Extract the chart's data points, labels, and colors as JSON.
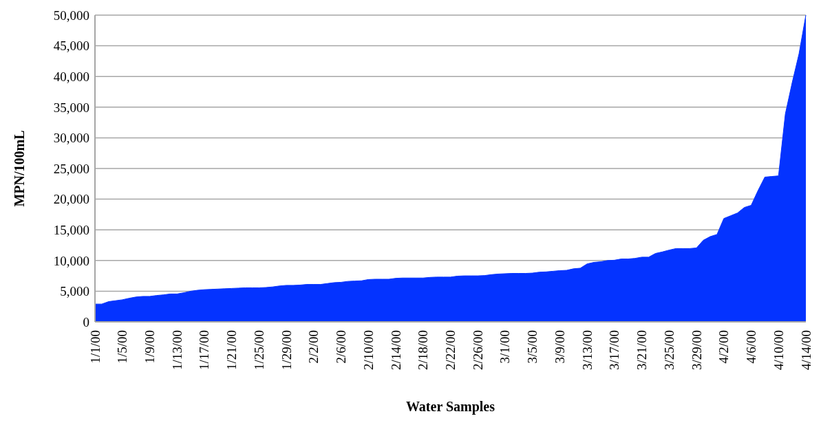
{
  "chart_data": {
    "type": "area",
    "xlabel": "Water Samples",
    "ylabel": "MPN/100mL",
    "categories": [
      "1/1/00",
      null,
      null,
      null,
      "1/5/00",
      null,
      null,
      null,
      "1/9/00",
      null,
      null,
      null,
      "1/13/00",
      null,
      null,
      null,
      "1/17/00",
      null,
      null,
      null,
      "1/21/00",
      null,
      null,
      null,
      "1/25/00",
      null,
      null,
      null,
      "1/29/00",
      null,
      null,
      null,
      "2/2/00",
      null,
      null,
      null,
      "2/6/00",
      null,
      null,
      null,
      "2/10/00",
      null,
      null,
      null,
      "2/14/00",
      null,
      null,
      null,
      "2/18/00",
      null,
      null,
      null,
      "2/22/00",
      null,
      null,
      null,
      "2/26/00",
      null,
      null,
      null,
      "3/1/00",
      null,
      null,
      null,
      "3/5/00",
      null,
      null,
      null,
      "3/9/00",
      null,
      null,
      null,
      "3/13/00",
      null,
      null,
      null,
      "3/17/00",
      null,
      null,
      null,
      "3/21/00",
      null,
      null,
      null,
      "3/25/00",
      null,
      null,
      null,
      "3/29/00",
      null,
      null,
      null,
      "4/2/00",
      null,
      null,
      null,
      "4/6/00",
      null,
      null,
      null,
      "4/10/00",
      null,
      null,
      null,
      "4/14/00"
    ],
    "values": [
      2900,
      2900,
      3300,
      3450,
      3600,
      3850,
      4050,
      4150,
      4150,
      4300,
      4400,
      4550,
      4550,
      4750,
      5000,
      5150,
      5250,
      5300,
      5350,
      5400,
      5450,
      5500,
      5550,
      5550,
      5550,
      5600,
      5700,
      5850,
      5950,
      5950,
      6000,
      6100,
      6100,
      6100,
      6250,
      6400,
      6450,
      6600,
      6650,
      6700,
      6900,
      6950,
      6950,
      6950,
      7100,
      7150,
      7150,
      7150,
      7150,
      7250,
      7300,
      7300,
      7300,
      7450,
      7500,
      7500,
      7500,
      7550,
      7700,
      7800,
      7850,
      7900,
      7900,
      7900,
      7950,
      8100,
      8150,
      8250,
      8350,
      8400,
      8650,
      8750,
      9450,
      9700,
      9800,
      10000,
      10050,
      10250,
      10250,
      10350,
      10550,
      10550,
      11150,
      11400,
      11700,
      11950,
      11950,
      11950,
      12050,
      13300,
      13900,
      14250,
      16850,
      17300,
      17750,
      18650,
      19000,
      21400,
      23600,
      23700,
      23800,
      33900,
      39000,
      43700,
      50000
    ],
    "color": "#0433ff",
    "ylim": [
      0,
      50000
    ],
    "yticks": [
      0,
      {
        "value": 5000,
        "label": "5,000"
      },
      {
        "value": 10000,
        "label": "10,000"
      },
      {
        "value": 15000,
        "label": "15,000"
      },
      {
        "value": 20000,
        "label": "20,000"
      },
      {
        "value": 25000,
        "label": "25,000"
      },
      {
        "value": 30000,
        "label": "30,000"
      },
      {
        "value": 35000,
        "label": "35,000"
      },
      {
        "value": 40000,
        "label": "40,000"
      },
      {
        "value": 45000,
        "label": "45,000"
      },
      {
        "value": 50000,
        "label": "50,000"
      }
    ],
    "grid": "y"
  }
}
